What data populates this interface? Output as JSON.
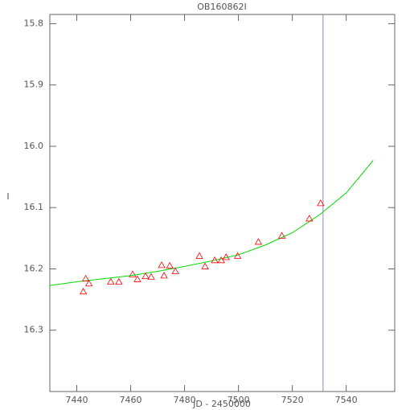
{
  "chart_data": {
    "type": "scatter",
    "title": "OB160862I",
    "x_label": "JD - 2450000",
    "y_label": "I",
    "xlim": [
      7430,
      7558
    ],
    "ylim": [
      16.4,
      15.785
    ],
    "xticks": [
      7440,
      7460,
      7480,
      7500,
      7520,
      7540
    ],
    "yticks": [
      15.8,
      15.9,
      {
        "value": 16,
        "label": "16.0"
      },
      16.1,
      16.2,
      16.3
    ],
    "points": {
      "color": "#ff0000",
      "x": [
        7442.4,
        7443.3,
        7444.5,
        7452.6,
        7455.6,
        7460.7,
        7462.5,
        7465.5,
        7467.6,
        7471.5,
        7472.4,
        7474.5,
        7476.6,
        7485.5,
        7487.6,
        7491.2,
        7493.6,
        7495.4,
        7499.7,
        7507.4,
        7516.1,
        7526.3,
        7530.5
      ],
      "values": [
        16.237,
        16.216,
        16.224,
        16.221,
        16.221,
        16.209,
        16.217,
        16.212,
        16.213,
        16.194,
        16.211,
        16.195,
        16.204,
        16.179,
        16.196,
        16.186,
        16.186,
        16.181,
        16.179,
        16.156,
        16.146,
        16.118,
        16.093
      ]
    },
    "curve": {
      "color": "#00dd00",
      "x": [
        7430,
        7440,
        7450,
        7460,
        7470,
        7480,
        7490,
        7500,
        7510,
        7520,
        7530,
        7540,
        7550
      ],
      "values": [
        16.227,
        16.221,
        16.216,
        16.211,
        16.204,
        16.196,
        16.187,
        16.177,
        16.161,
        16.141,
        16.112,
        16.076,
        16.023
      ]
    },
    "vline": {
      "x": 7531.4,
      "color": "#8888cc"
    }
  }
}
